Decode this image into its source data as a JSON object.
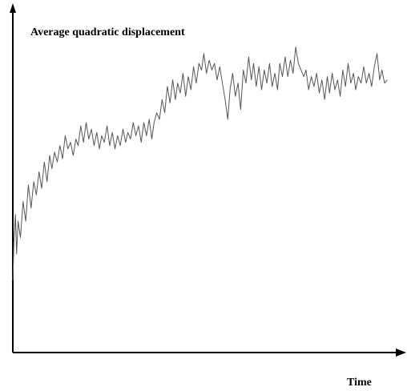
{
  "chart_data": {
    "type": "line",
    "title": "",
    "ylabel": "Average quadratic displacement",
    "xlabel": "Time",
    "axis_color": "#000000",
    "line_color": "#555555",
    "grid": false,
    "tick_labels": false,
    "xlim": [
      0,
      1
    ],
    "ylim": [
      0,
      1
    ],
    "series": [
      {
        "points": [
          [
            0.0,
            0.22
          ],
          [
            0.003,
            0.34
          ],
          [
            0.007,
            0.42
          ],
          [
            0.01,
            0.3
          ],
          [
            0.014,
            0.4
          ],
          [
            0.02,
            0.35
          ],
          [
            0.027,
            0.46
          ],
          [
            0.034,
            0.4
          ],
          [
            0.041,
            0.51
          ],
          [
            0.048,
            0.44
          ],
          [
            0.055,
            0.52
          ],
          [
            0.062,
            0.48
          ],
          [
            0.069,
            0.55
          ],
          [
            0.076,
            0.5
          ],
          [
            0.083,
            0.58
          ],
          [
            0.09,
            0.52
          ],
          [
            0.097,
            0.6
          ],
          [
            0.103,
            0.56
          ],
          [
            0.11,
            0.61
          ],
          [
            0.117,
            0.58
          ],
          [
            0.124,
            0.63
          ],
          [
            0.131,
            0.59
          ],
          [
            0.138,
            0.66
          ],
          [
            0.145,
            0.62
          ],
          [
            0.152,
            0.64
          ],
          [
            0.159,
            0.6
          ],
          [
            0.166,
            0.65
          ],
          [
            0.172,
            0.63
          ],
          [
            0.179,
            0.69
          ],
          [
            0.186,
            0.64
          ],
          [
            0.193,
            0.7
          ],
          [
            0.2,
            0.65
          ],
          [
            0.207,
            0.68
          ],
          [
            0.214,
            0.63
          ],
          [
            0.221,
            0.67
          ],
          [
            0.228,
            0.62
          ],
          [
            0.234,
            0.66
          ],
          [
            0.241,
            0.64
          ],
          [
            0.248,
            0.69
          ],
          [
            0.255,
            0.63
          ],
          [
            0.262,
            0.67
          ],
          [
            0.269,
            0.62
          ],
          [
            0.276,
            0.66
          ],
          [
            0.283,
            0.63
          ],
          [
            0.29,
            0.68
          ],
          [
            0.297,
            0.64
          ],
          [
            0.303,
            0.67
          ],
          [
            0.31,
            0.65
          ],
          [
            0.317,
            0.7
          ],
          [
            0.324,
            0.66
          ],
          [
            0.331,
            0.69
          ],
          [
            0.338,
            0.64
          ],
          [
            0.345,
            0.7
          ],
          [
            0.352,
            0.66
          ],
          [
            0.359,
            0.71
          ],
          [
            0.366,
            0.65
          ],
          [
            0.372,
            0.7
          ],
          [
            0.379,
            0.73
          ],
          [
            0.386,
            0.71
          ],
          [
            0.393,
            0.77
          ],
          [
            0.4,
            0.73
          ],
          [
            0.407,
            0.81
          ],
          [
            0.414,
            0.76
          ],
          [
            0.421,
            0.83
          ],
          [
            0.428,
            0.77
          ],
          [
            0.434,
            0.82
          ],
          [
            0.441,
            0.79
          ],
          [
            0.448,
            0.85
          ],
          [
            0.455,
            0.78
          ],
          [
            0.462,
            0.84
          ],
          [
            0.469,
            0.8
          ],
          [
            0.476,
            0.87
          ],
          [
            0.483,
            0.82
          ],
          [
            0.49,
            0.88
          ],
          [
            0.497,
            0.86
          ],
          [
            0.503,
            0.91
          ],
          [
            0.51,
            0.85
          ],
          [
            0.517,
            0.89
          ],
          [
            0.524,
            0.86
          ],
          [
            0.531,
            0.88
          ],
          [
            0.538,
            0.83
          ],
          [
            0.545,
            0.87
          ],
          [
            0.552,
            0.82
          ],
          [
            0.559,
            0.77
          ],
          [
            0.566,
            0.71
          ],
          [
            0.572,
            0.8
          ],
          [
            0.579,
            0.85
          ],
          [
            0.586,
            0.78
          ],
          [
            0.593,
            0.82
          ],
          [
            0.6,
            0.74
          ],
          [
            0.607,
            0.86
          ],
          [
            0.614,
            0.82
          ],
          [
            0.621,
            0.9
          ],
          [
            0.628,
            0.83
          ],
          [
            0.634,
            0.88
          ],
          [
            0.641,
            0.81
          ],
          [
            0.648,
            0.87
          ],
          [
            0.655,
            0.8
          ],
          [
            0.662,
            0.86
          ],
          [
            0.669,
            0.82
          ],
          [
            0.676,
            0.88
          ],
          [
            0.683,
            0.81
          ],
          [
            0.69,
            0.85
          ],
          [
            0.697,
            0.8
          ],
          [
            0.703,
            0.88
          ],
          [
            0.71,
            0.84
          ],
          [
            0.717,
            0.9
          ],
          [
            0.724,
            0.84
          ],
          [
            0.731,
            0.89
          ],
          [
            0.738,
            0.85
          ],
          [
            0.745,
            0.93
          ],
          [
            0.752,
            0.88
          ],
          [
            0.759,
            0.86
          ],
          [
            0.766,
            0.84
          ],
          [
            0.772,
            0.86
          ],
          [
            0.779,
            0.8
          ],
          [
            0.786,
            0.84
          ],
          [
            0.793,
            0.81
          ],
          [
            0.8,
            0.85
          ],
          [
            0.807,
            0.79
          ],
          [
            0.814,
            0.83
          ],
          [
            0.821,
            0.77
          ],
          [
            0.828,
            0.84
          ],
          [
            0.834,
            0.79
          ],
          [
            0.841,
            0.85
          ],
          [
            0.848,
            0.8
          ],
          [
            0.855,
            0.83
          ],
          [
            0.862,
            0.78
          ],
          [
            0.869,
            0.86
          ],
          [
            0.876,
            0.81
          ],
          [
            0.883,
            0.88
          ],
          [
            0.89,
            0.82
          ],
          [
            0.897,
            0.85
          ],
          [
            0.903,
            0.8
          ],
          [
            0.91,
            0.84
          ],
          [
            0.917,
            0.82
          ],
          [
            0.924,
            0.87
          ],
          [
            0.931,
            0.82
          ],
          [
            0.938,
            0.85
          ],
          [
            0.945,
            0.81
          ],
          [
            0.952,
            0.87
          ],
          [
            0.959,
            0.91
          ],
          [
            0.966,
            0.83
          ],
          [
            0.972,
            0.86
          ],
          [
            0.979,
            0.82
          ],
          [
            0.986,
            0.83
          ]
        ]
      }
    ]
  }
}
